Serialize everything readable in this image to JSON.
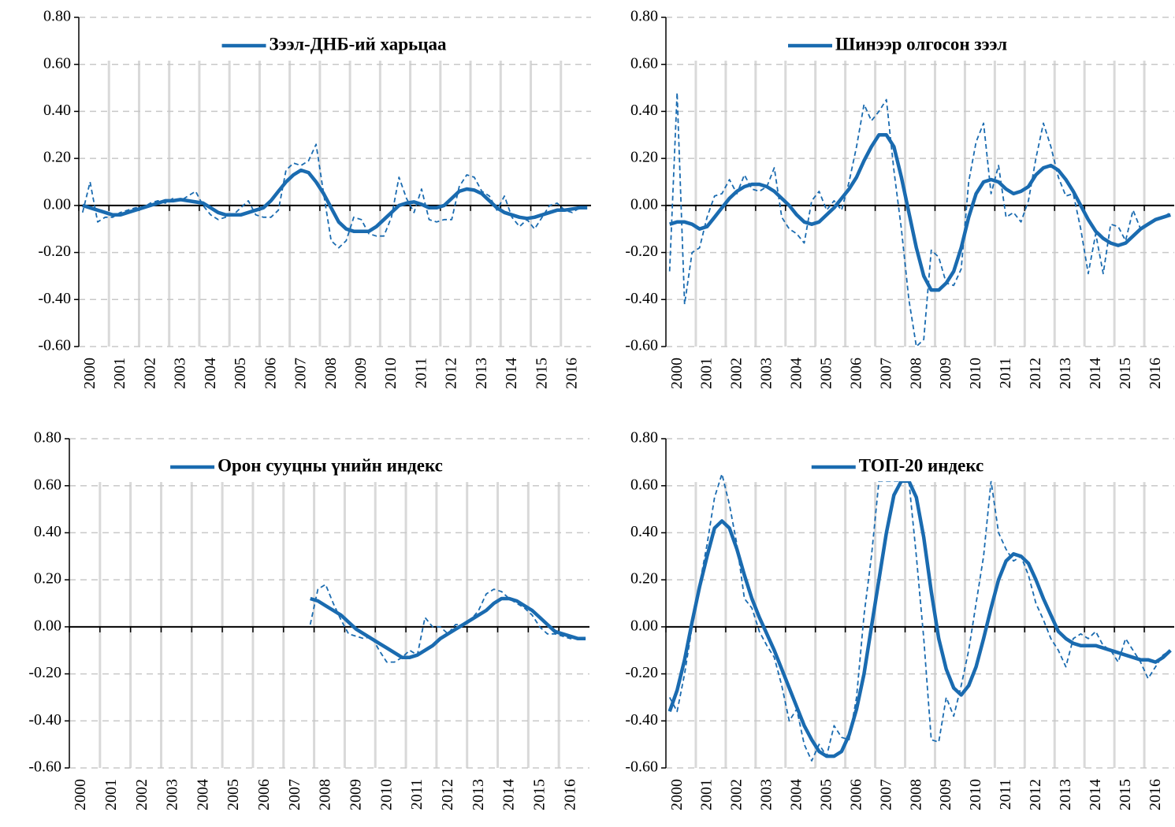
{
  "chart_data": [
    {
      "type": "line",
      "legend": "top",
      "grid": true,
      "ylim": [
        -0.6,
        0.8
      ],
      "yticks": [
        {
          "value": -0.6,
          "label": "-0.60"
        },
        {
          "value": -0.4,
          "label": "-0.40"
        },
        {
          "value": -0.2,
          "label": "-0.20"
        },
        {
          "value": 0,
          "label": "0.00"
        },
        {
          "value": 0.2,
          "label": "0.20"
        },
        {
          "value": 0.4,
          "label": "0.40"
        },
        {
          "value": 0.6,
          "label": "0.60"
        },
        {
          "value": 0.8,
          "label": "0.80"
        }
      ],
      "categories": [
        "2000",
        null,
        null,
        null,
        "2001",
        null,
        null,
        null,
        "2002",
        null,
        null,
        null,
        "2003",
        null,
        null,
        null,
        "2004",
        null,
        null,
        null,
        "2005",
        null,
        null,
        null,
        "2006",
        null,
        null,
        null,
        "2007",
        null,
        null,
        null,
        "2008",
        null,
        null,
        null,
        "2009",
        null,
        null,
        null,
        "2010",
        null,
        null,
        null,
        "2011",
        null,
        null,
        null,
        "2012",
        null,
        null,
        null,
        "2013",
        null,
        null,
        null,
        "2014",
        null,
        null,
        null,
        "2015",
        null,
        null,
        null,
        "2016",
        null,
        null,
        null
      ],
      "series": [
        {
          "name": "Зээл-ДНБ-ий харьцаа",
          "color": "#1a6bb0",
          "style": "solid",
          "values": [
            0,
            -0.01,
            -0.02,
            -0.03,
            -0.04,
            -0.04,
            -0.03,
            -0.02,
            -0.01,
            0,
            0.01,
            0.02,
            0.02,
            0.025,
            0.02,
            0.015,
            0.01,
            -0.01,
            -0.03,
            -0.04,
            -0.04,
            -0.04,
            -0.03,
            -0.02,
            -0.01,
            0.02,
            0.06,
            0.1,
            0.13,
            0.15,
            0.14,
            0.1,
            0.05,
            -0.01,
            -0.07,
            -0.1,
            -0.11,
            -0.11,
            -0.11,
            -0.09,
            -0.06,
            -0.03,
            0,
            0.01,
            0.015,
            0.005,
            -0.01,
            -0.01,
            0,
            0.03,
            0.06,
            0.07,
            0.065,
            0.05,
            0.02,
            -0.01,
            -0.03,
            -0.04,
            -0.05,
            -0.055,
            -0.05,
            -0.04,
            -0.03,
            -0.02,
            -0.02,
            -0.015,
            -0.01,
            -0.01
          ]
        },
        {
          "color": "#1a6bb0",
          "style": "dashed",
          "values": [
            -0.03,
            0.1,
            -0.07,
            -0.05,
            -0.05,
            -0.03,
            -0.02,
            -0.01,
            -0.01,
            0.01,
            0.02,
            0.01,
            0.03,
            0.02,
            0.04,
            0.06,
            0,
            -0.04,
            -0.06,
            -0.05,
            -0.04,
            -0.01,
            0.02,
            -0.04,
            -0.05,
            -0.05,
            -0.02,
            0.15,
            0.18,
            0.17,
            0.19,
            0.26,
            0.05,
            -0.15,
            -0.18,
            -0.15,
            -0.05,
            -0.06,
            -0.12,
            -0.13,
            -0.13,
            -0.05,
            0.12,
            0.03,
            -0.03,
            0.07,
            -0.06,
            -0.07,
            -0.06,
            -0.06,
            0.08,
            0.13,
            0.12,
            0.06,
            0.04,
            -0.02,
            0.04,
            -0.05,
            -0.09,
            -0.06,
            -0.1,
            -0.05,
            0,
            0.01,
            -0.02,
            -0.03,
            -0.01,
            -0.01
          ]
        }
      ]
    },
    {
      "type": "line",
      "legend": "top",
      "grid": true,
      "ylim": [
        -0.6,
        0.8
      ],
      "yticks": [
        {
          "value": -0.6,
          "label": "-0.60"
        },
        {
          "value": -0.4,
          "label": "-0.40"
        },
        {
          "value": -0.2,
          "label": "-0.20"
        },
        {
          "value": 0,
          "label": "0.00"
        },
        {
          "value": 0.2,
          "label": "0.20"
        },
        {
          "value": 0.4,
          "label": "0.40"
        },
        {
          "value": 0.6,
          "label": "0.60"
        },
        {
          "value": 0.8,
          "label": "0.80"
        }
      ],
      "categories": [
        "2000",
        null,
        null,
        null,
        "2001",
        null,
        null,
        null,
        "2002",
        null,
        null,
        null,
        "2003",
        null,
        null,
        null,
        "2004",
        null,
        null,
        null,
        "2005",
        null,
        null,
        null,
        "2006",
        null,
        null,
        null,
        "2007",
        null,
        null,
        null,
        "2008",
        null,
        null,
        null,
        "2009",
        null,
        null,
        null,
        "2010",
        null,
        null,
        null,
        "2011",
        null,
        null,
        null,
        "2012",
        null,
        null,
        null,
        "2013",
        null,
        null,
        null,
        "2014",
        null,
        null,
        null,
        "2015",
        null,
        null,
        null,
        "2016",
        null,
        null,
        null
      ],
      "series": [
        {
          "name": "Шинээр олгосон зээл",
          "color": "#1a6bb0",
          "style": "solid",
          "values": [
            -0.08,
            -0.07,
            -0.07,
            -0.08,
            -0.1,
            -0.09,
            -0.05,
            -0.01,
            0.03,
            0.06,
            0.08,
            0.09,
            0.09,
            0.08,
            0.06,
            0.03,
            0,
            -0.04,
            -0.07,
            -0.08,
            -0.07,
            -0.04,
            -0.01,
            0.03,
            0.07,
            0.12,
            0.19,
            0.25,
            0.3,
            0.3,
            0.25,
            0.12,
            -0.03,
            -0.18,
            -0.3,
            -0.36,
            -0.36,
            -0.33,
            -0.28,
            -0.18,
            -0.05,
            0.05,
            0.1,
            0.11,
            0.1,
            0.07,
            0.05,
            0.06,
            0.08,
            0.13,
            0.16,
            0.17,
            0.15,
            0.11,
            0.06,
            0,
            -0.06,
            -0.11,
            -0.14,
            -0.16,
            -0.17,
            -0.16,
            -0.13,
            -0.1,
            -0.08,
            -0.06,
            -0.05,
            -0.04
          ]
        },
        {
          "color": "#1a6bb0",
          "style": "dashed",
          "values": [
            -0.28,
            0.48,
            -0.42,
            -0.2,
            -0.18,
            -0.05,
            0.04,
            0.05,
            0.11,
            0.05,
            0.13,
            0.07,
            0.06,
            0.08,
            0.16,
            -0.05,
            -0.1,
            -0.12,
            -0.16,
            0.02,
            0.06,
            -0.02,
            0.02,
            -0.02,
            0.1,
            0.25,
            0.43,
            0.36,
            0.4,
            0.45,
            0.15,
            -0.1,
            -0.4,
            -0.6,
            -0.57,
            -0.19,
            -0.22,
            -0.33,
            -0.34,
            -0.27,
            0.1,
            0.27,
            0.35,
            0.05,
            0.17,
            -0.05,
            -0.03,
            -0.07,
            0.02,
            0.2,
            0.35,
            0.25,
            0.12,
            0.04,
            0.05,
            -0.1,
            -0.29,
            -0.12,
            -0.29,
            -0.08,
            -0.09,
            -0.15,
            -0.02,
            -0.1,
            -0.08,
            -0.06,
            -0.05,
            -0.03
          ]
        }
      ]
    },
    {
      "type": "line",
      "legend": "top",
      "grid": true,
      "ylim": [
        -0.6,
        0.8
      ],
      "yticks": [
        {
          "value": -0.6,
          "label": "-0.60"
        },
        {
          "value": -0.4,
          "label": "-0.40"
        },
        {
          "value": -0.2,
          "label": "-0.20"
        },
        {
          "value": 0,
          "label": "0.00"
        },
        {
          "value": 0.2,
          "label": "0.20"
        },
        {
          "value": 0.4,
          "label": "0.40"
        },
        {
          "value": 0.6,
          "label": "0.60"
        },
        {
          "value": 0.8,
          "label": "0.80"
        }
      ],
      "categories": [
        "2000",
        null,
        null,
        null,
        "2001",
        null,
        null,
        null,
        "2002",
        null,
        null,
        null,
        "2003",
        null,
        null,
        null,
        "2004",
        null,
        null,
        null,
        "2005",
        null,
        null,
        null,
        "2006",
        null,
        null,
        null,
        "2007",
        null,
        null,
        null,
        "2008",
        null,
        null,
        null,
        "2009",
        null,
        null,
        null,
        "2010",
        null,
        null,
        null,
        "2011",
        null,
        null,
        null,
        "2012",
        null,
        null,
        null,
        "2013",
        null,
        null,
        null,
        "2014",
        null,
        null,
        null,
        "2015",
        null,
        null,
        null,
        "2016",
        null,
        null,
        null
      ],
      "series": [
        {
          "name": "Орон сууцны үнийн индекс",
          "color": "#1a6bb0",
          "style": "solid",
          "values": [
            null,
            null,
            null,
            null,
            null,
            null,
            null,
            null,
            null,
            null,
            null,
            null,
            null,
            null,
            null,
            null,
            null,
            null,
            null,
            null,
            null,
            null,
            null,
            null,
            null,
            null,
            null,
            null,
            null,
            null,
            null,
            0.12,
            0.11,
            0.09,
            0.07,
            0.05,
            0.02,
            -0.01,
            -0.03,
            -0.05,
            -0.07,
            -0.09,
            -0.11,
            -0.13,
            -0.13,
            -0.12,
            -0.1,
            -0.08,
            -0.05,
            -0.03,
            -0.01,
            0.01,
            0.03,
            0.05,
            0.07,
            0.1,
            0.12,
            0.12,
            0.11,
            0.09,
            0.07,
            0.04,
            0.01,
            -0.02,
            -0.03,
            -0.04,
            -0.05,
            -0.05
          ]
        },
        {
          "color": "#1a6bb0",
          "style": "dashed",
          "values": [
            null,
            null,
            null,
            null,
            null,
            null,
            null,
            null,
            null,
            null,
            null,
            null,
            null,
            null,
            null,
            null,
            null,
            null,
            null,
            null,
            null,
            null,
            null,
            null,
            null,
            null,
            null,
            null,
            null,
            null,
            null,
            0.01,
            0.16,
            0.18,
            0.1,
            0.03,
            -0.03,
            -0.04,
            -0.05,
            -0.04,
            -0.1,
            -0.15,
            -0.15,
            -0.13,
            -0.1,
            -0.12,
            0.04,
            0,
            0,
            -0.03,
            0.01,
            0.01,
            0.03,
            0.07,
            0.14,
            0.16,
            0.15,
            0.12,
            0.1,
            0.08,
            0.05,
            0,
            -0.03,
            -0.03,
            -0.04,
            -0.05,
            -0.05,
            -0.05
          ]
        }
      ]
    },
    {
      "type": "line",
      "legend": "top",
      "grid": true,
      "ylim": [
        -0.6,
        0.8
      ],
      "yticks": [
        {
          "value": -0.6,
          "label": "-0.60"
        },
        {
          "value": -0.4,
          "label": "-0.40"
        },
        {
          "value": -0.2,
          "label": "-0.20"
        },
        {
          "value": 0,
          "label": "0.00"
        },
        {
          "value": 0.2,
          "label": "0.20"
        },
        {
          "value": 0.4,
          "label": "0.40"
        },
        {
          "value": 0.6,
          "label": "0.60"
        },
        {
          "value": 0.8,
          "label": "0.80"
        }
      ],
      "categories": [
        "2000",
        null,
        null,
        null,
        "2001",
        null,
        null,
        null,
        "2002",
        null,
        null,
        null,
        "2003",
        null,
        null,
        null,
        "2004",
        null,
        null,
        null,
        "2005",
        null,
        null,
        null,
        "2006",
        null,
        null,
        null,
        "2007",
        null,
        null,
        null,
        "2008",
        null,
        null,
        null,
        "2009",
        null,
        null,
        null,
        "2010",
        null,
        null,
        null,
        "2011",
        null,
        null,
        null,
        "2012",
        null,
        null,
        null,
        "2013",
        null,
        null,
        null,
        "2014",
        null,
        null,
        null,
        "2015",
        null,
        null,
        null,
        "2016",
        null,
        null,
        null
      ],
      "series": [
        {
          "name": "ТОП-20 индекс",
          "color": "#1a6bb0",
          "style": "solid",
          "values": [
            -0.36,
            -0.27,
            -0.14,
            0.02,
            0.17,
            0.3,
            0.42,
            0.45,
            0.42,
            0.33,
            0.22,
            0.12,
            0.04,
            -0.03,
            -0.1,
            -0.18,
            -0.26,
            -0.34,
            -0.42,
            -0.48,
            -0.53,
            -0.55,
            -0.55,
            -0.53,
            -0.46,
            -0.35,
            -0.2,
            0,
            0.2,
            0.4,
            0.56,
            0.62,
            0.62,
            0.55,
            0.38,
            0.15,
            -0.05,
            -0.18,
            -0.26,
            -0.29,
            -0.25,
            -0.17,
            -0.05,
            0.08,
            0.2,
            0.28,
            0.31,
            0.3,
            0.27,
            0.2,
            0.12,
            0.05,
            -0.02,
            -0.05,
            -0.07,
            -0.08,
            -0.08,
            -0.08,
            -0.09,
            -0.1,
            -0.11,
            -0.12,
            -0.13,
            -0.14,
            -0.14,
            -0.15,
            -0.13,
            -0.1
          ]
        },
        {
          "color": "#1a6bb0",
          "style": "dashed",
          "values": [
            -0.3,
            -0.36,
            -0.2,
            0,
            0.18,
            0.35,
            0.55,
            0.65,
            0.52,
            0.35,
            0.12,
            0.08,
            -0.02,
            -0.08,
            -0.13,
            -0.25,
            -0.4,
            -0.35,
            -0.5,
            -0.57,
            -0.5,
            -0.55,
            -0.42,
            -0.47,
            -0.48,
            -0.3,
            0.05,
            0.3,
            0.62,
            0.62,
            0.62,
            0.62,
            0.62,
            0.3,
            -0.05,
            -0.48,
            -0.49,
            -0.3,
            -0.38,
            -0.25,
            -0.1,
            0.1,
            0.3,
            0.62,
            0.4,
            0.33,
            0.28,
            0.3,
            0.22,
            0.1,
            0.03,
            -0.05,
            -0.1,
            -0.17,
            -0.05,
            -0.03,
            -0.05,
            -0.02,
            -0.08,
            -0.1,
            -0.15,
            -0.05,
            -0.1,
            -0.15,
            -0.22,
            -0.17,
            -0.12,
            -0.1
          ]
        }
      ]
    }
  ]
}
